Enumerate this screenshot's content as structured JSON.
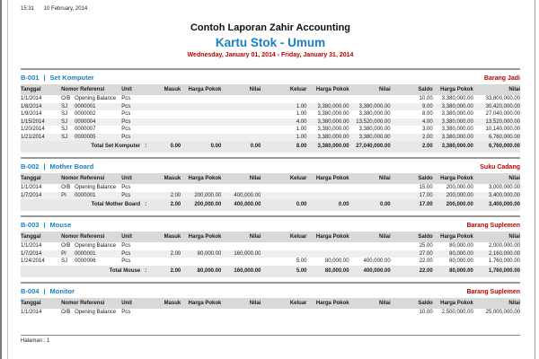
{
  "meta": {
    "time": "15:31",
    "date": "10 February, 2014",
    "footer": "Halaman : 1"
  },
  "header": {
    "title": "Contoh Laporan Zahir Accounting",
    "subtitle": "Kartu Stok - Umum",
    "period": "Wednesday, January 01, 2014 - Friday, January 31, 2014"
  },
  "labels": {
    "divider": "|",
    "colon": ":"
  },
  "columns": [
    "Tanggal",
    "Nomor Referensi",
    "Unit",
    "Masuk",
    "Harga Pokok",
    "Nilai",
    "Keluar",
    "Harga Pokok",
    "Nilai",
    "Saldo",
    "Harga Pokok",
    "Nilai"
  ],
  "sections": [
    {
      "code": "B-001",
      "name": "Set Komputer",
      "category": "Barang Jadi",
      "rows": [
        {
          "tanggal": "1/1/2014",
          "ref_type": "O/B",
          "ref_no": "Opening Balance",
          "unit": "Pcs",
          "masuk_qty": "",
          "masuk_hp": "",
          "masuk_nilai": "",
          "keluar_qty": "",
          "keluar_hp": "",
          "keluar_nilai": "",
          "saldo_qty": "10.00",
          "saldo_hp": "3,380,000.00",
          "saldo_nilai": "33,800,000.00"
        },
        {
          "tanggal": "1/8/2014",
          "ref_type": "SJ",
          "ref_no": "0000001",
          "unit": "Pcs",
          "masuk_qty": "",
          "masuk_hp": "",
          "masuk_nilai": "",
          "keluar_qty": "1.00",
          "keluar_hp": "3,380,000.00",
          "keluar_nilai": "3,380,000.00",
          "saldo_qty": "9.00",
          "saldo_hp": "3,380,000.00",
          "saldo_nilai": "30,420,000.00"
        },
        {
          "tanggal": "1/9/2014",
          "ref_type": "SJ",
          "ref_no": "0000002",
          "unit": "Pcs",
          "masuk_qty": "",
          "masuk_hp": "",
          "masuk_nilai": "",
          "keluar_qty": "1.00",
          "keluar_hp": "3,380,000.00",
          "keluar_nilai": "3,380,000.00",
          "saldo_qty": "8.00",
          "saldo_hp": "3,380,000.00",
          "saldo_nilai": "27,040,000.00"
        },
        {
          "tanggal": "1/15/2014",
          "ref_type": "SJ",
          "ref_no": "0000004",
          "unit": "Pcs",
          "masuk_qty": "",
          "masuk_hp": "",
          "masuk_nilai": "",
          "keluar_qty": "4.00",
          "keluar_hp": "3,380,000.00",
          "keluar_nilai": "13,520,000.00",
          "saldo_qty": "4.00",
          "saldo_hp": "3,380,000.00",
          "saldo_nilai": "13,520,000.00"
        },
        {
          "tanggal": "1/20/2014",
          "ref_type": "SJ",
          "ref_no": "0000007",
          "unit": "Pcs",
          "masuk_qty": "",
          "masuk_hp": "",
          "masuk_nilai": "",
          "keluar_qty": "1.00",
          "keluar_hp": "3,380,000.00",
          "keluar_nilai": "3,380,000.00",
          "saldo_qty": "3.00",
          "saldo_hp": "3,380,000.00",
          "saldo_nilai": "10,140,000.00"
        },
        {
          "tanggal": "1/21/2014",
          "ref_type": "SJ",
          "ref_no": "0000005",
          "unit": "Pcs",
          "masuk_qty": "",
          "masuk_hp": "",
          "masuk_nilai": "",
          "keluar_qty": "1.00",
          "keluar_hp": "3,380,000.00",
          "keluar_nilai": "3,380,000.00",
          "saldo_qty": "2.00",
          "saldo_hp": "3,380,000.00",
          "saldo_nilai": "6,760,000.00"
        }
      ],
      "total": {
        "label": "Total Set Komputer",
        "masuk_qty": "0.00",
        "masuk_hp": "0.00",
        "masuk_nilai": "0.00",
        "keluar_qty": "8.00",
        "keluar_hp": "3,380,000.00",
        "keluar_nilai": "27,040,000.00",
        "saldo_qty": "2.00",
        "saldo_hp": "3,380,000.00",
        "saldo_nilai": "6,760,000.00"
      }
    },
    {
      "code": "B-002",
      "name": "Mother Board",
      "category": "Suku Cadang",
      "rows": [
        {
          "tanggal": "1/1/2014",
          "ref_type": "O/B",
          "ref_no": "Opening Balance",
          "unit": "Pcs",
          "masuk_qty": "",
          "masuk_hp": "",
          "masuk_nilai": "",
          "keluar_qty": "",
          "keluar_hp": "",
          "keluar_nilai": "",
          "saldo_qty": "15.00",
          "saldo_hp": "200,000.00",
          "saldo_nilai": "3,000,000.00"
        },
        {
          "tanggal": "1/7/2014",
          "ref_type": "PI",
          "ref_no": "0000001",
          "unit": "Pcs",
          "masuk_qty": "2.00",
          "masuk_hp": "200,000.00",
          "masuk_nilai": "400,000.00",
          "keluar_qty": "",
          "keluar_hp": "",
          "keluar_nilai": "",
          "saldo_qty": "17.00",
          "saldo_hp": "200,000.00",
          "saldo_nilai": "3,400,000.00"
        }
      ],
      "total": {
        "label": "Total Mother Board",
        "masuk_qty": "2.00",
        "masuk_hp": "200,000.00",
        "masuk_nilai": "400,000.00",
        "keluar_qty": "0.00",
        "keluar_hp": "0.00",
        "keluar_nilai": "0.00",
        "saldo_qty": "17.00",
        "saldo_hp": "200,000.00",
        "saldo_nilai": "3,400,000.00"
      }
    },
    {
      "code": "B-003",
      "name": "Mouse",
      "category": "Barang Suplemen",
      "rows": [
        {
          "tanggal": "1/1/2014",
          "ref_type": "O/B",
          "ref_no": "Opening Balance",
          "unit": "Pcs",
          "masuk_qty": "",
          "masuk_hp": "",
          "masuk_nilai": "",
          "keluar_qty": "",
          "keluar_hp": "",
          "keluar_nilai": "",
          "saldo_qty": "25.00",
          "saldo_hp": "80,000.00",
          "saldo_nilai": "2,000,000.00"
        },
        {
          "tanggal": "1/7/2014",
          "ref_type": "PI",
          "ref_no": "0000001",
          "unit": "Pcs",
          "masuk_qty": "2.00",
          "masuk_hp": "80,000.00",
          "masuk_nilai": "160,000.00",
          "keluar_qty": "",
          "keluar_hp": "",
          "keluar_nilai": "",
          "saldo_qty": "27.00",
          "saldo_hp": "80,000.00",
          "saldo_nilai": "2,160,000.00"
        },
        {
          "tanggal": "1/24/2014",
          "ref_type": "SJ",
          "ref_no": "0000006",
          "unit": "Pcs",
          "masuk_qty": "",
          "masuk_hp": "",
          "masuk_nilai": "",
          "keluar_qty": "5.00",
          "keluar_hp": "80,000.00",
          "keluar_nilai": "400,000.00",
          "saldo_qty": "22.00",
          "saldo_hp": "80,000.00",
          "saldo_nilai": "1,760,000.00"
        }
      ],
      "total": {
        "label": "Total Mouse",
        "masuk_qty": "2.00",
        "masuk_hp": "80,000.00",
        "masuk_nilai": "160,000.00",
        "keluar_qty": "5.00",
        "keluar_hp": "80,000.00",
        "keluar_nilai": "400,000.00",
        "saldo_qty": "22.00",
        "saldo_hp": "80,000.00",
        "saldo_nilai": "1,760,000.00"
      }
    },
    {
      "code": "B-004",
      "name": "Monitor",
      "category": "Barang Suplemen",
      "rows": [
        {
          "tanggal": "1/1/2014",
          "ref_type": "O/B",
          "ref_no": "Opening Balance",
          "unit": "Pcs",
          "masuk_qty": "",
          "masuk_hp": "",
          "masuk_nilai": "",
          "keluar_qty": "",
          "keluar_hp": "",
          "keluar_nilai": "",
          "saldo_qty": "10.00",
          "saldo_hp": "2,500,000.00",
          "saldo_nilai": "25,000,000.00"
        }
      ],
      "total": null
    }
  ]
}
